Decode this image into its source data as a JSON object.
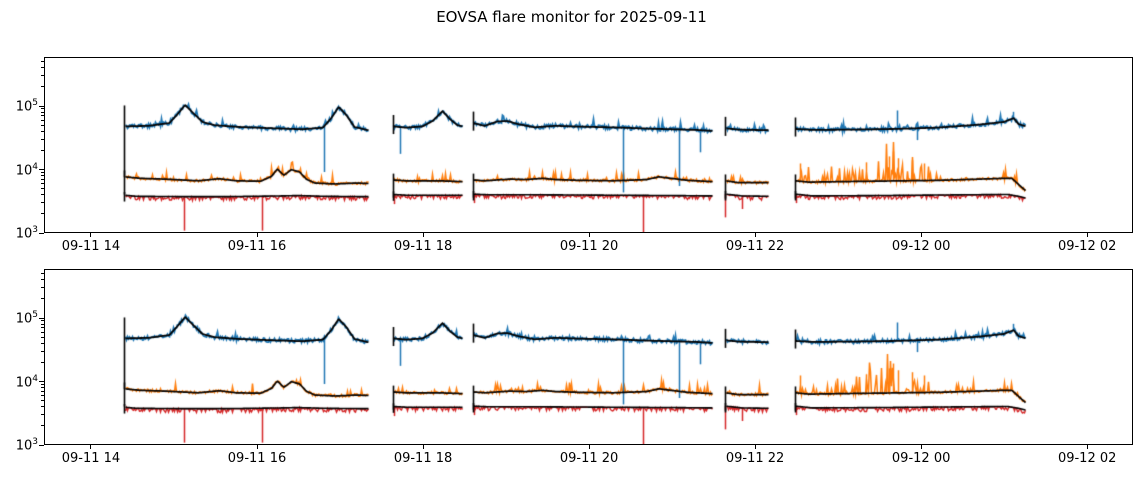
{
  "title": "EOVSA flare monitor for 2025-09-11",
  "colors": {
    "blue": "#1f77b4",
    "orange": "#ff7f0e",
    "red": "#d62728",
    "smoothed": "#000000",
    "axis": "#000000",
    "background": "#ffffff"
  },
  "chart_data": {
    "type": "line",
    "title": "EOVSA flare monitor for 2025-09-11",
    "xlabel": "",
    "ylabel": "",
    "grid": false,
    "legend": null,
    "panels": [
      "upper",
      "lower"
    ],
    "x_axis": {
      "tick_labels": [
        "09-11 14",
        "09-11 16",
        "09-11 18",
        "09-11 20",
        "09-11 22",
        "09-12 00",
        "09-12 02"
      ],
      "tick_hours": [
        0,
        2,
        4,
        6,
        8,
        10,
        12
      ],
      "range_hours": [
        -0.542,
        12.552
      ]
    },
    "y_axis": {
      "scale": "log",
      "tick_exponents": [
        3,
        4,
        5
      ],
      "tick_values": [
        1000,
        10000,
        100000
      ],
      "range": [
        1000,
        560000
      ]
    },
    "segments_hours": [
      [
        0.41,
        3.35
      ],
      [
        3.65,
        4.49
      ],
      [
        4.61,
        7.5
      ],
      [
        7.65,
        8.17
      ],
      [
        8.49,
        11.27
      ]
    ],
    "series": [
      {
        "name": "blue-noisy-flux",
        "color": "#1f77b4",
        "overlay_color": "#000000",
        "keypoints": [
          [
            0.41,
            46000
          ],
          [
            0.7,
            47000
          ],
          [
            0.95,
            52000
          ],
          [
            1.05,
            72000
          ],
          [
            1.14,
            100000
          ],
          [
            1.25,
            72000
          ],
          [
            1.35,
            54000
          ],
          [
            1.5,
            48000
          ],
          [
            1.8,
            45000
          ],
          [
            2.2,
            43000
          ],
          [
            2.55,
            41500
          ],
          [
            2.8,
            44000
          ],
          [
            2.9,
            62000
          ],
          [
            2.99,
            93000
          ],
          [
            3.08,
            70000
          ],
          [
            3.18,
            45000
          ],
          [
            3.28,
            42000
          ],
          [
            3.35,
            40000
          ],
          [
            3.65,
            46000
          ],
          [
            3.8,
            44000
          ],
          [
            4.0,
            46000
          ],
          [
            4.12,
            56000
          ],
          [
            4.24,
            80000
          ],
          [
            4.33,
            60000
          ],
          [
            4.42,
            48000
          ],
          [
            4.49,
            46000
          ],
          [
            4.61,
            52000
          ],
          [
            4.75,
            47000
          ],
          [
            4.9,
            55000
          ],
          [
            5.02,
            56000
          ],
          [
            5.15,
            50000
          ],
          [
            5.35,
            44500
          ],
          [
            5.6,
            47000
          ],
          [
            5.8,
            46000
          ],
          [
            6.1,
            45000
          ],
          [
            6.4,
            44000
          ],
          [
            6.7,
            42500
          ],
          [
            7.0,
            41500
          ],
          [
            7.3,
            40500
          ],
          [
            7.5,
            39000
          ],
          [
            7.65,
            43000
          ],
          [
            7.8,
            41000
          ],
          [
            8.17,
            40000
          ],
          [
            8.49,
            42000
          ],
          [
            8.7,
            40500
          ],
          [
            9.2,
            41000
          ],
          [
            9.7,
            42000
          ],
          [
            10.2,
            44000
          ],
          [
            10.7,
            49000
          ],
          [
            11.0,
            54000
          ],
          [
            11.12,
            62000
          ],
          [
            11.18,
            50000
          ],
          [
            11.27,
            46000
          ]
        ]
      },
      {
        "name": "orange-noisy-flux",
        "color": "#ff7f0e",
        "overlay_color": "#000000",
        "burst_interval_hours": [
          8.55,
          10.15
        ],
        "keypoints": [
          [
            0.41,
            7400
          ],
          [
            0.6,
            7000
          ],
          [
            0.9,
            6800
          ],
          [
            1.3,
            6400
          ],
          [
            1.55,
            6900
          ],
          [
            1.75,
            6400
          ],
          [
            2.05,
            6300
          ],
          [
            2.18,
            7500
          ],
          [
            2.25,
            9800
          ],
          [
            2.33,
            7800
          ],
          [
            2.42,
            9600
          ],
          [
            2.52,
            8800
          ],
          [
            2.6,
            6800
          ],
          [
            2.7,
            5900
          ],
          [
            2.95,
            5700
          ],
          [
            3.2,
            5900
          ],
          [
            3.35,
            5800
          ],
          [
            3.65,
            6600
          ],
          [
            3.8,
            6400
          ],
          [
            4.2,
            6400
          ],
          [
            4.49,
            6200
          ],
          [
            4.61,
            6600
          ],
          [
            4.75,
            6400
          ],
          [
            5.05,
            6800
          ],
          [
            5.25,
            6700
          ],
          [
            5.45,
            7000
          ],
          [
            5.6,
            6700
          ],
          [
            5.9,
            6500
          ],
          [
            6.3,
            6400
          ],
          [
            6.7,
            6700
          ],
          [
            6.85,
            7400
          ],
          [
            6.95,
            7100
          ],
          [
            7.2,
            6500
          ],
          [
            7.5,
            6200
          ],
          [
            7.65,
            6400
          ],
          [
            7.8,
            6000
          ],
          [
            8.17,
            6000
          ],
          [
            8.49,
            6400
          ],
          [
            8.65,
            6100
          ],
          [
            9.0,
            6200
          ],
          [
            9.4,
            6300
          ],
          [
            9.8,
            6400
          ],
          [
            10.2,
            6500
          ],
          [
            10.7,
            6800
          ],
          [
            11.0,
            7000
          ],
          [
            11.1,
            7000
          ],
          [
            11.18,
            5600
          ],
          [
            11.27,
            4400
          ]
        ]
      },
      {
        "name": "red-noisy-flux",
        "color": "#d62728",
        "overlay_color": "#000000",
        "keypoints": [
          [
            0.41,
            3800
          ],
          [
            0.55,
            3650
          ],
          [
            1.2,
            3600
          ],
          [
            1.6,
            3600
          ],
          [
            2.3,
            3700
          ],
          [
            2.5,
            3750
          ],
          [
            2.8,
            3650
          ],
          [
            3.35,
            3600
          ],
          [
            3.65,
            3900
          ],
          [
            3.8,
            3800
          ],
          [
            4.49,
            3800
          ],
          [
            4.61,
            3950
          ],
          [
            4.8,
            3850
          ],
          [
            5.5,
            3850
          ],
          [
            6.2,
            3800
          ],
          [
            7.0,
            3750
          ],
          [
            7.5,
            3700
          ],
          [
            7.65,
            3950
          ],
          [
            7.85,
            3700
          ],
          [
            8.17,
            3650
          ],
          [
            8.49,
            3950
          ],
          [
            8.7,
            3700
          ],
          [
            9.5,
            3750
          ],
          [
            10.5,
            3850
          ],
          [
            11.05,
            3900
          ],
          [
            11.18,
            3650
          ],
          [
            11.27,
            3400
          ]
        ]
      }
    ],
    "vertical_spikes": {
      "blue_down": [
        [
          2.82,
          8800
        ],
        [
          3.73,
          17000
        ],
        [
          6.42,
          4200
        ],
        [
          7.1,
          5300
        ],
        [
          7.35,
          18000
        ],
        [
          9.96,
          28000
        ]
      ],
      "blue_up": [
        [
          9.72,
          82000
        ],
        [
          11.12,
          78000
        ]
      ],
      "red_down": [
        [
          1.13,
          1050
        ],
        [
          2.07,
          1050
        ],
        [
          3.66,
          2750
        ],
        [
          4.62,
          2850
        ],
        [
          6.66,
          1000
        ],
        [
          7.65,
          1700
        ],
        [
          7.86,
          2300
        ],
        [
          8.5,
          2850
        ]
      ],
      "orange_up": [
        [
          8.55,
          12000
        ],
        [
          9.35,
          12500
        ],
        [
          9.62,
          15500
        ],
        [
          9.67,
          18500
        ],
        [
          9.73,
          14500
        ],
        [
          9.9,
          13500
        ],
        [
          10.05,
          12000
        ]
      ]
    }
  }
}
